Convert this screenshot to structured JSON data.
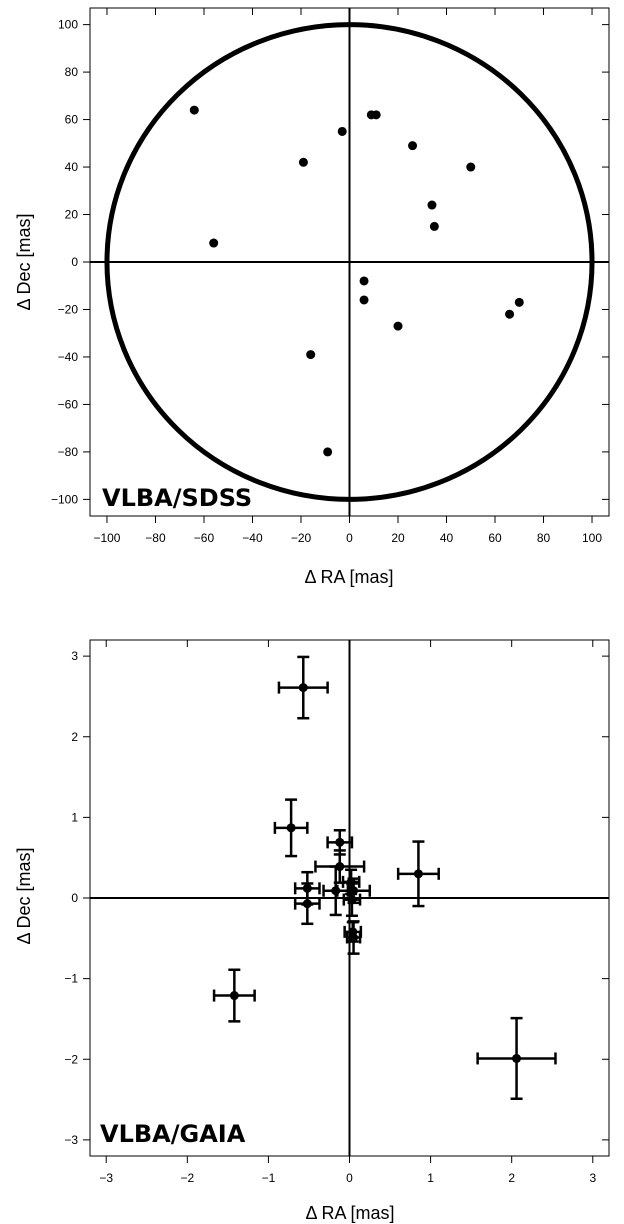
{
  "chart_data": [
    {
      "type": "scatter",
      "panel_label": "VLBA/SDSS",
      "xlabel": "Δ RA [mas]",
      "ylabel": "Δ Dec [mas]",
      "xlim": [
        -107,
        107
      ],
      "ylim": [
        -107,
        107
      ],
      "xticks": [
        -100,
        -80,
        -60,
        -40,
        -20,
        0,
        20,
        40,
        60,
        80,
        100
      ],
      "yticks": [
        -100,
        -80,
        -60,
        -40,
        -20,
        0,
        20,
        40,
        60,
        80,
        100
      ],
      "circle_radius": 100,
      "crosshair": true,
      "points": [
        {
          "x": -64,
          "y": 64
        },
        {
          "x": -56,
          "y": 8
        },
        {
          "x": -19,
          "y": 42
        },
        {
          "x": -3,
          "y": 55
        },
        {
          "x": 9,
          "y": 62
        },
        {
          "x": 11,
          "y": 62
        },
        {
          "x": 26,
          "y": 49
        },
        {
          "x": 50,
          "y": 40
        },
        {
          "x": 34,
          "y": 24
        },
        {
          "x": 35,
          "y": 15
        },
        {
          "x": 6,
          "y": -8
        },
        {
          "x": 6,
          "y": -16
        },
        {
          "x": 20,
          "y": -27
        },
        {
          "x": 70,
          "y": -17
        },
        {
          "x": 66,
          "y": -22
        },
        {
          "x": -16,
          "y": -39
        },
        {
          "x": -9,
          "y": -80
        }
      ]
    },
    {
      "type": "scatter",
      "panel_label": "VLBA/GAIA",
      "xlabel": "Δ RA [mas]",
      "ylabel": "Δ Dec [mas]",
      "xlim": [
        -3.2,
        3.2
      ],
      "ylim": [
        -3.2,
        3.2
      ],
      "xticks": [
        -3,
        -2,
        -1,
        0,
        1,
        2,
        3
      ],
      "yticks": [
        -3,
        -2,
        -1,
        0,
        1,
        2,
        3
      ],
      "crosshair": true,
      "points": [
        {
          "x": -0.57,
          "y": 2.61,
          "xerr": 0.3,
          "yerr": 0.38
        },
        {
          "x": -0.72,
          "y": 0.87,
          "xerr": 0.2,
          "yerr": 0.35
        },
        {
          "x": -0.12,
          "y": 0.69,
          "xerr": 0.15,
          "yerr": 0.15
        },
        {
          "x": -0.12,
          "y": 0.39,
          "xerr": 0.3,
          "yerr": 0.2
        },
        {
          "x": -0.52,
          "y": 0.12,
          "xerr": 0.15,
          "yerr": 0.2
        },
        {
          "x": -0.52,
          "y": -0.07,
          "xerr": 0.15,
          "yerr": 0.25
        },
        {
          "x": -0.17,
          "y": 0.09,
          "xerr": 0.15,
          "yerr": 0.3
        },
        {
          "x": 0.02,
          "y": 0.2,
          "xerr": 0.1,
          "yerr": 0.15
        },
        {
          "x": 0.05,
          "y": 0.09,
          "xerr": 0.2,
          "yerr": 0.15
        },
        {
          "x": 0.03,
          "y": -0.02,
          "xerr": 0.1,
          "yerr": 0.2
        },
        {
          "x": 0.04,
          "y": -0.42,
          "xerr": 0.1,
          "yerr": 0.12
        },
        {
          "x": 0.05,
          "y": -0.49,
          "xerr": 0.08,
          "yerr": 0.2
        },
        {
          "x": 0.85,
          "y": 0.3,
          "xerr": 0.25,
          "yerr": 0.4
        },
        {
          "x": -1.42,
          "y": -1.21,
          "xerr": 0.25,
          "yerr": 0.32
        },
        {
          "x": 2.06,
          "y": -1.99,
          "xerr": 0.48,
          "yerr": 0.5
        }
      ]
    }
  ]
}
